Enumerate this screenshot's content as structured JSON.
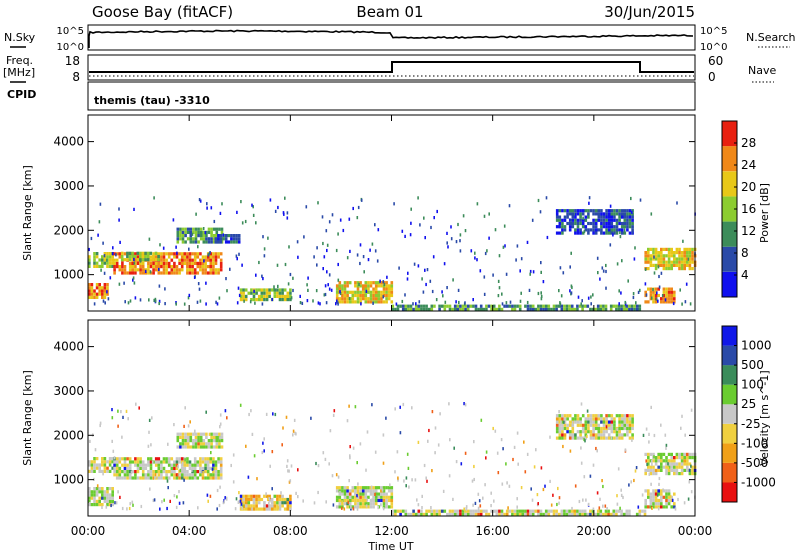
{
  "header": {
    "station": "Goose Bay (fitACF)",
    "beam": "Beam 01",
    "date": "30/Jun/2015"
  },
  "top_panels": {
    "nsky_label": "N.Sky",
    "nsky_ticks": [
      "10^5",
      "10^0"
    ],
    "nsearch_label": "N.Search",
    "nsearch_ticks": [
      "10^5",
      "10^0"
    ],
    "freq_label": "Freq.",
    "freq_unit": "[MHz]",
    "freq_ticks": [
      "18",
      "8"
    ],
    "nave_label": "Nave",
    "nave_ticks": [
      "60",
      "0"
    ],
    "cpid_label": "CPID",
    "cpid_text": "themis (tau) -3310"
  },
  "chart_data": [
    {
      "type": "heatmap",
      "name": "power",
      "ylabel": "Slant Range [km]",
      "yticks": [
        1000,
        2000,
        3000,
        4000
      ],
      "ylim": [
        180,
        4600
      ],
      "xlim": [
        0,
        24
      ],
      "colorbar_label": "Power [dB]",
      "colorbar_ticks": [
        "4",
        "8",
        "12",
        "16",
        "20",
        "24",
        "28"
      ],
      "colors": [
        "#1010ee",
        "#2a4aa8",
        "#3c8c5a",
        "#8ccc30",
        "#e8c818",
        "#f08818",
        "#e82010"
      ],
      "regions": [
        {
          "t": [
            0.0,
            1.0
          ],
          "r": [
            1150,
            1450
          ],
          "level": 3
        },
        {
          "t": [
            0.0,
            0.8
          ],
          "r": [
            450,
            800
          ],
          "level": 5
        },
        {
          "t": [
            1.0,
            5.3
          ],
          "r": [
            1000,
            1500
          ],
          "level": 5
        },
        {
          "t": [
            1.3,
            2.8
          ],
          "r": [
            1300,
            1450
          ],
          "level": 3
        },
        {
          "t": [
            3.5,
            5.3
          ],
          "r": [
            1700,
            2000
          ],
          "level": 2
        },
        {
          "t": [
            5.0,
            6.0
          ],
          "r": [
            1700,
            1900
          ],
          "level": 1
        },
        {
          "t": [
            6.0,
            8.0
          ],
          "r": [
            400,
            650
          ],
          "level": 3
        },
        {
          "t": [
            9.8,
            12.0
          ],
          "r": [
            350,
            850
          ],
          "level": 4
        },
        {
          "t": [
            12.0,
            22.0
          ],
          "r": [
            180,
            260
          ],
          "level": 2
        },
        {
          "t": [
            18.5,
            21.5
          ],
          "r": [
            1900,
            2450
          ],
          "level": 1
        },
        {
          "t": [
            22.0,
            24.0
          ],
          "r": [
            1100,
            1550
          ],
          "level": 4
        },
        {
          "t": [
            22.0,
            23.2
          ],
          "r": [
            350,
            700
          ],
          "level": 5
        }
      ]
    },
    {
      "type": "heatmap",
      "name": "velocity",
      "ylabel": "Slant Range [km]",
      "yticks": [
        1000,
        2000,
        3000,
        4000
      ],
      "ylim": [
        180,
        4600
      ],
      "xlim": [
        0,
        24
      ],
      "colorbar_label": "Velocity [m s^-1]",
      "colorbar_ticks": [
        "-1000",
        "-500",
        "-100",
        "-25",
        "25",
        "100",
        "500",
        "1000"
      ],
      "colors": [
        "#e81010",
        "#f06018",
        "#f0a018",
        "#f0d040",
        "#c8c8c8",
        "#6acc30",
        "#3a8c5a",
        "#2a4aa8",
        "#1018e8"
      ],
      "regions": [
        {
          "t": [
            0.0,
            1.0
          ],
          "r": [
            1150,
            1450
          ],
          "level": 4
        },
        {
          "t": [
            0.0,
            1.0
          ],
          "r": [
            400,
            800
          ],
          "level": 4
        },
        {
          "t": [
            1.0,
            5.3
          ],
          "r": [
            1000,
            1500
          ],
          "level": 4
        },
        {
          "t": [
            3.5,
            5.3
          ],
          "r": [
            1700,
            2000
          ],
          "level": 4
        },
        {
          "t": [
            6.0,
            8.0
          ],
          "r": [
            300,
            650
          ],
          "level": 3
        },
        {
          "t": [
            9.8,
            12.0
          ],
          "r": [
            350,
            850
          ],
          "level": 4
        },
        {
          "t": [
            12.0,
            22.0
          ],
          "r": [
            180,
            260
          ],
          "level": 4
        },
        {
          "t": [
            18.5,
            21.5
          ],
          "r": [
            1900,
            2450
          ],
          "level": 4
        },
        {
          "t": [
            22.0,
            24.0
          ],
          "r": [
            1100,
            1550
          ],
          "level": 4
        },
        {
          "t": [
            22.0,
            23.2
          ],
          "r": [
            350,
            750
          ],
          "level": 4
        }
      ]
    }
  ],
  "x_axis": {
    "ticks": [
      "00:00",
      "04:00",
      "08:00",
      "12:00",
      "16:00",
      "20:00",
      "00:00"
    ],
    "label": "Time UT"
  }
}
